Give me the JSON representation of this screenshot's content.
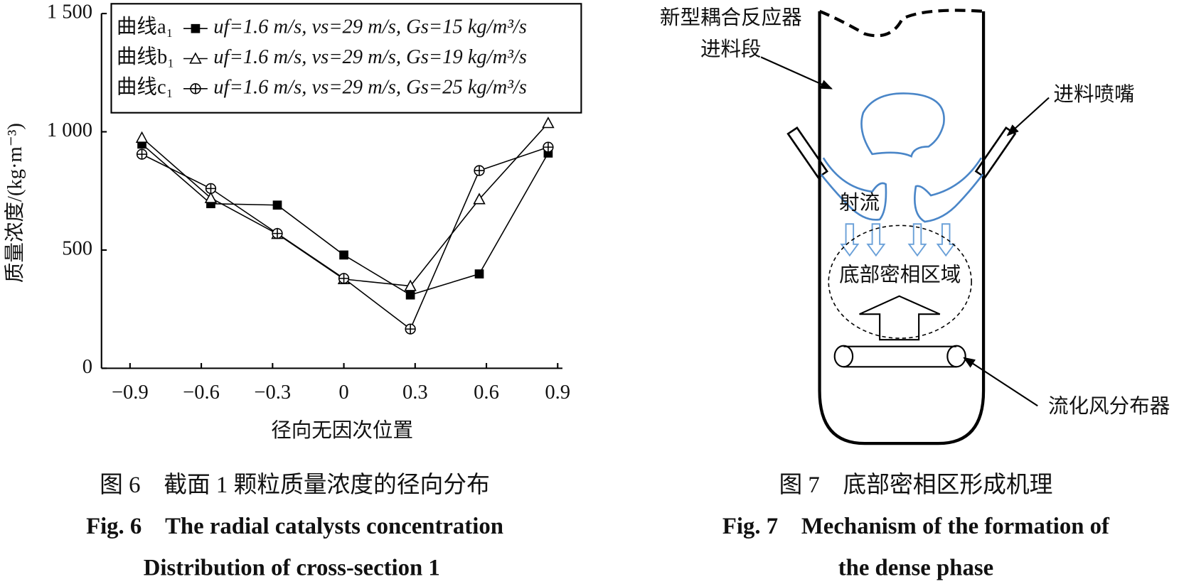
{
  "chart_data": {
    "type": "line",
    "y_label": "质量浓度/(kg·m⁻³)",
    "x_label": "径向无因次位置",
    "x": [
      -0.85,
      -0.56,
      -0.28,
      0,
      0.28,
      0.57,
      0.86
    ],
    "series": [
      {
        "name": "曲线a₁",
        "legend_text": "uf=1.6 m/s, vs=29 m/s, Gs=15 kg/m³/s",
        "marker": "square",
        "color": "#000000",
        "values": [
          948,
          696,
          690,
          479,
          310,
          399,
          910
        ]
      },
      {
        "name": "曲线b₁",
        "legend_text": "uf=1.6 m/s, vs=29 m/s, Gs=19 kg/m³/s",
        "marker": "triangle",
        "color": "#000000",
        "values": [
          975,
          720,
          568,
          377,
          348,
          715,
          1037
        ]
      },
      {
        "name": "曲线c₁",
        "legend_text": "uf=1.6 m/s, vs=29 m/s, Gs=25 kg/m³/s",
        "marker": "circle-plus",
        "color": "#000000",
        "values": [
          905,
          760,
          570,
          380,
          166,
          836,
          935
        ]
      }
    ],
    "xlim": [
      -1.02,
      0.92
    ],
    "ylim": [
      0,
      1500
    ],
    "xticks": [
      {
        "value": -0.9,
        "label": "−0.9"
      },
      {
        "value": -0.6,
        "label": "−0.6"
      },
      {
        "value": -0.3,
        "label": "−0.3"
      },
      0,
      0.3,
      0.6,
      0.9
    ],
    "yticks": [
      0,
      500,
      {
        "value": 1000,
        "label": "1 000"
      },
      {
        "value": 1500,
        "label": "1 500"
      }
    ],
    "legend": "top"
  },
  "figure6_caption": {
    "cn": "图 6　截面 1 颗粒质量浓度的径向分布",
    "en_1": "Fig. 6　The radial catalysts concentration",
    "en_2": "Distribution of cross-section 1"
  },
  "figure7": {
    "labels": [
      "新型耦合反应器",
      "进料段",
      "进料喷嘴",
      "射流",
      "底部密相区域",
      "流化风分布器"
    ]
  },
  "figure7_caption": {
    "cn": "图 7　底部密相区形成机理",
    "en_1": "Fig. 7　Mechanism of the formation of",
    "en_2": "the dense phase"
  }
}
